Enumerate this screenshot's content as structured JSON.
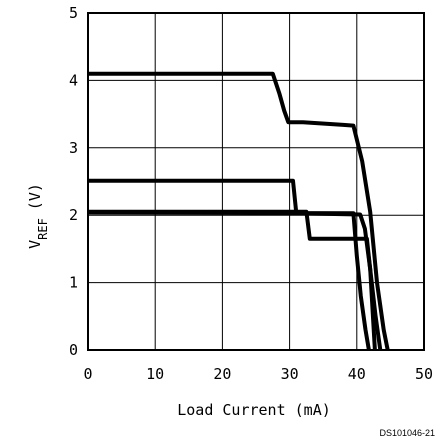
{
  "chart_data": {
    "type": "line",
    "xlabel": "Load Current (mA)",
    "ylabel": {
      "main": "V",
      "sub": "REF",
      "unit": "(V)"
    },
    "xlim": [
      0,
      50
    ],
    "ylim": [
      0,
      5
    ],
    "x_ticks": [
      "0",
      "10",
      "20",
      "30",
      "40",
      "50"
    ],
    "y_ticks": [
      "0",
      "1",
      "2",
      "3",
      "4",
      "5"
    ],
    "grid": true,
    "legend": "none",
    "footnote": "DS101046-21",
    "series": [
      {
        "x": [
          0,
          27.5,
          28.5,
          29.2,
          29.8,
          32,
          38,
          39.5,
          40.8,
          42,
          43,
          44,
          44.6
        ],
        "y": [
          4.1,
          4.1,
          3.8,
          3.55,
          3.38,
          3.38,
          3.34,
          3.33,
          2.8,
          2.05,
          1.0,
          0.3,
          0
        ]
      },
      {
        "x": [
          0,
          30.5,
          31,
          40.5,
          41.2,
          42,
          42.8,
          43.5
        ],
        "y": [
          2.51,
          2.51,
          2.03,
          2.01,
          1.8,
          1.2,
          0.5,
          0
        ]
      },
      {
        "x": [
          0,
          32.5,
          33,
          41.5,
          42,
          42.7
        ],
        "y": [
          2.05,
          2.05,
          1.65,
          1.65,
          1.2,
          0
        ]
      },
      {
        "x": [
          0,
          39.5,
          40,
          40.6,
          41.3,
          41.8
        ],
        "y": [
          2.04,
          2.03,
          1.4,
          0.8,
          0.3,
          0
        ]
      }
    ]
  }
}
